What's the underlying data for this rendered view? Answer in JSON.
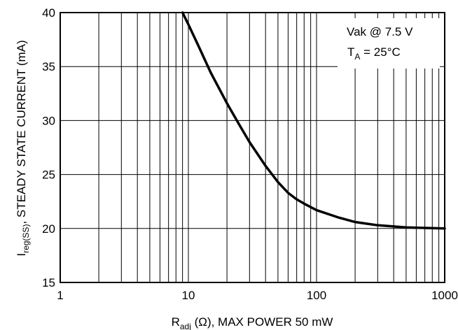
{
  "chart_data": {
    "type": "line",
    "x_scale": "log",
    "xlim": [
      1,
      1000
    ],
    "ylim": [
      15,
      40
    ],
    "x_ticks": [
      "1",
      "10",
      "100",
      "1000"
    ],
    "y_ticks": [
      "15",
      "20",
      "25",
      "30",
      "35",
      "40"
    ],
    "grid": true,
    "xlabel": {
      "main": "R",
      "sub": "adj",
      "rest": " (Ω), MAX POWER 50 mW"
    },
    "ylabel": {
      "main": "I",
      "sub": "reg(SS)",
      "rest": ", STEADY STATE CURRENT (mA)"
    },
    "annotations": {
      "line1": "Vak @ 7.5 V",
      "line2_main": "T",
      "line2_sub": "A",
      "line2_rest": " = 25°C"
    },
    "series": [
      {
        "x": [
          9,
          10,
          12,
          15,
          20,
          25,
          30,
          40,
          50,
          60,
          70,
          80,
          100,
          150,
          200,
          300,
          500,
          700,
          1000
        ],
        "y": [
          40,
          38.9,
          36.9,
          34.4,
          31.6,
          29.6,
          28.0,
          25.8,
          24.3,
          23.3,
          22.7,
          22.3,
          21.7,
          21.0,
          20.6,
          20.3,
          20.1,
          20.05,
          20.0
        ]
      }
    ]
  }
}
